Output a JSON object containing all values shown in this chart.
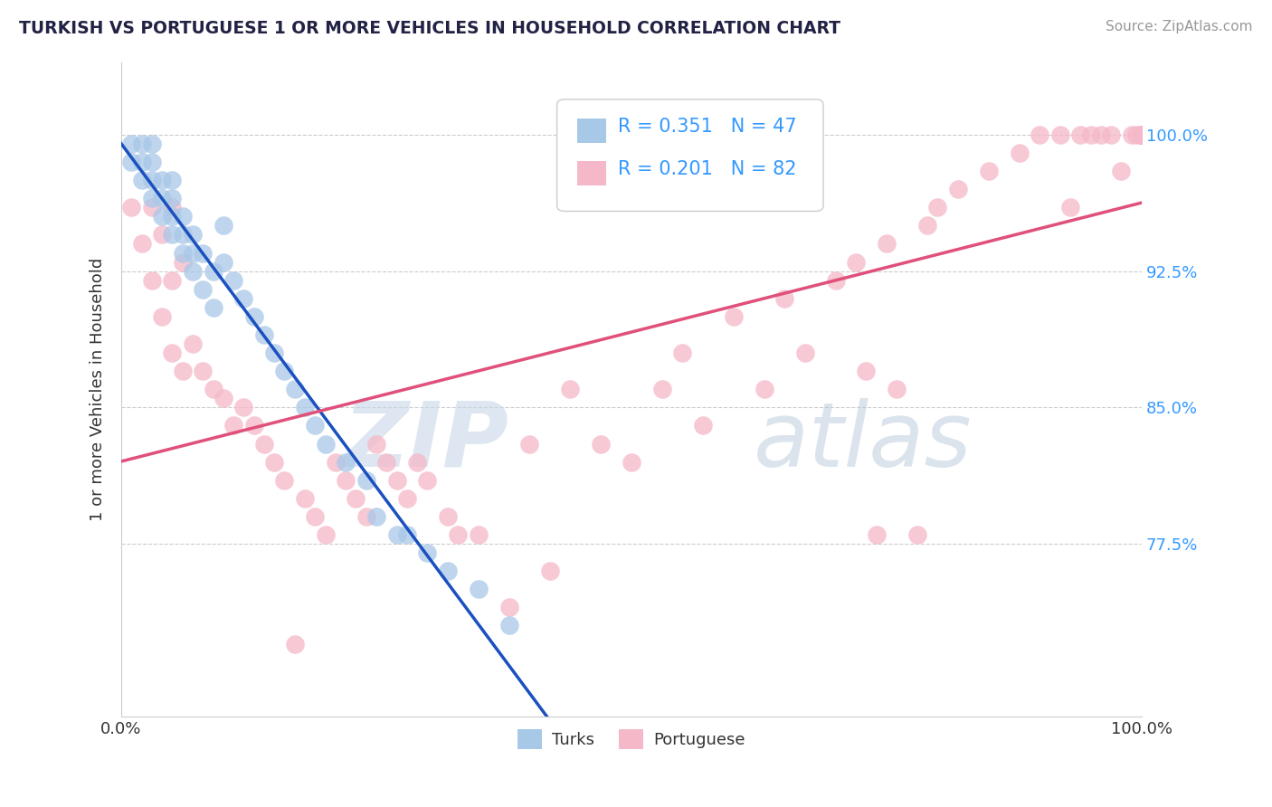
{
  "title": "TURKISH VS PORTUGUESE 1 OR MORE VEHICLES IN HOUSEHOLD CORRELATION CHART",
  "source": "Source: ZipAtlas.com",
  "ylabel": "1 or more Vehicles in Household",
  "legend_label_1": "Turks",
  "legend_label_2": "Portuguese",
  "r1": 0.351,
  "n1": 47,
  "r2": 0.201,
  "n2": 82,
  "color_turks": "#a8c8e8",
  "color_turks_dark": "#1a50c0",
  "color_portuguese": "#f5b8c8",
  "color_portuguese_dark": "#e0507a",
  "xlim": [
    0.0,
    1.0
  ],
  "ylim": [
    0.68,
    1.04
  ],
  "yticks": [
    0.775,
    0.85,
    0.925,
    1.0
  ],
  "ytick_labels": [
    "77.5%",
    "85.0%",
    "92.5%",
    "100.0%"
  ],
  "xtick_labels_left": "0.0%",
  "xtick_labels_right": "100.0%",
  "watermark_zip": "ZIP",
  "watermark_atlas": "atlas",
  "background_color": "#ffffff",
  "turks_x": [
    0.01,
    0.01,
    0.02,
    0.02,
    0.02,
    0.03,
    0.03,
    0.03,
    0.03,
    0.04,
    0.04,
    0.04,
    0.05,
    0.05,
    0.05,
    0.05,
    0.06,
    0.06,
    0.06,
    0.07,
    0.07,
    0.07,
    0.08,
    0.08,
    0.09,
    0.09,
    0.1,
    0.1,
    0.11,
    0.12,
    0.13,
    0.14,
    0.15,
    0.16,
    0.17,
    0.18,
    0.19,
    0.2,
    0.22,
    0.24,
    0.25,
    0.27,
    0.28,
    0.3,
    0.32,
    0.35,
    0.38
  ],
  "turks_y": [
    0.985,
    0.995,
    0.975,
    0.985,
    0.995,
    0.965,
    0.975,
    0.985,
    0.995,
    0.955,
    0.965,
    0.975,
    0.945,
    0.955,
    0.965,
    0.975,
    0.935,
    0.945,
    0.955,
    0.925,
    0.935,
    0.945,
    0.915,
    0.935,
    0.905,
    0.925,
    0.93,
    0.95,
    0.92,
    0.91,
    0.9,
    0.89,
    0.88,
    0.87,
    0.86,
    0.85,
    0.84,
    0.83,
    0.82,
    0.81,
    0.79,
    0.78,
    0.78,
    0.77,
    0.76,
    0.75,
    0.73
  ],
  "portuguese_x": [
    0.01,
    0.02,
    0.03,
    0.03,
    0.04,
    0.04,
    0.05,
    0.05,
    0.05,
    0.06,
    0.06,
    0.07,
    0.08,
    0.09,
    0.1,
    0.11,
    0.12,
    0.13,
    0.14,
    0.15,
    0.16,
    0.17,
    0.18,
    0.19,
    0.2,
    0.21,
    0.22,
    0.23,
    0.24,
    0.25,
    0.26,
    0.27,
    0.28,
    0.29,
    0.3,
    0.32,
    0.33,
    0.35,
    0.38,
    0.4,
    0.42,
    0.44,
    0.47,
    0.5,
    0.53,
    0.55,
    0.57,
    0.6,
    0.63,
    0.65,
    0.67,
    0.7,
    0.72,
    0.73,
    0.74,
    0.75,
    0.76,
    0.78,
    0.79,
    0.8,
    0.82,
    0.85,
    0.88,
    0.9,
    0.92,
    0.93,
    0.94,
    0.95,
    0.96,
    0.97,
    0.98,
    0.99,
    0.995,
    1.0,
    1.0,
    1.0,
    1.0,
    1.0,
    1.0,
    1.0,
    1.0,
    1.0
  ],
  "portuguese_y": [
    0.96,
    0.94,
    0.92,
    0.96,
    0.9,
    0.945,
    0.88,
    0.92,
    0.96,
    0.87,
    0.93,
    0.885,
    0.87,
    0.86,
    0.855,
    0.84,
    0.85,
    0.84,
    0.83,
    0.82,
    0.81,
    0.72,
    0.8,
    0.79,
    0.78,
    0.82,
    0.81,
    0.8,
    0.79,
    0.83,
    0.82,
    0.81,
    0.8,
    0.82,
    0.81,
    0.79,
    0.78,
    0.78,
    0.74,
    0.83,
    0.76,
    0.86,
    0.83,
    0.82,
    0.86,
    0.88,
    0.84,
    0.9,
    0.86,
    0.91,
    0.88,
    0.92,
    0.93,
    0.87,
    0.78,
    0.94,
    0.86,
    0.78,
    0.95,
    0.96,
    0.97,
    0.98,
    0.99,
    1.0,
    1.0,
    0.96,
    1.0,
    1.0,
    1.0,
    1.0,
    0.98,
    1.0,
    1.0,
    1.0,
    1.0,
    1.0,
    1.0,
    1.0,
    1.0,
    1.0,
    1.0,
    1.0
  ]
}
